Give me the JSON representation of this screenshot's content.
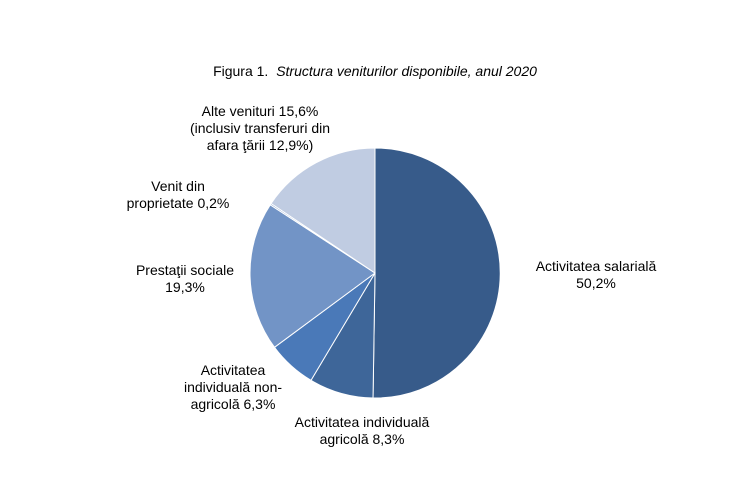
{
  "title": {
    "lead": "Figura 1.",
    "name": "Structura veniturilor disponibile, anul 2020"
  },
  "chart_data": {
    "type": "pie",
    "title": "Figura 1. Structura veniturilor disponibile, anul 2020",
    "start_angle_deg": 0,
    "direction": "clockwise",
    "slices": [
      {
        "label": "Activitatea salarială\n50,2%",
        "value": 50.2,
        "color": "#375b8a"
      },
      {
        "label": "Activitatea individuală\nagricolă 8,3%",
        "value": 8.3,
        "color": "#3e6699"
      },
      {
        "label": "Activitatea\nindividuală non-\nagricolă 6,3%",
        "value": 6.3,
        "color": "#4a79b8"
      },
      {
        "label": "Prestaţii sociale\n19,3%",
        "value": 19.3,
        "color": "#7294c6"
      },
      {
        "label": "Venit din\nproprietate 0,2%",
        "value": 0.2,
        "color": "#8fa9d2"
      },
      {
        "label": "Alte venituri 15,6%\n(inclusiv transferuri din\nafara ţării 12,9%)",
        "value": 15.6,
        "color": "#c0cce2"
      }
    ]
  }
}
